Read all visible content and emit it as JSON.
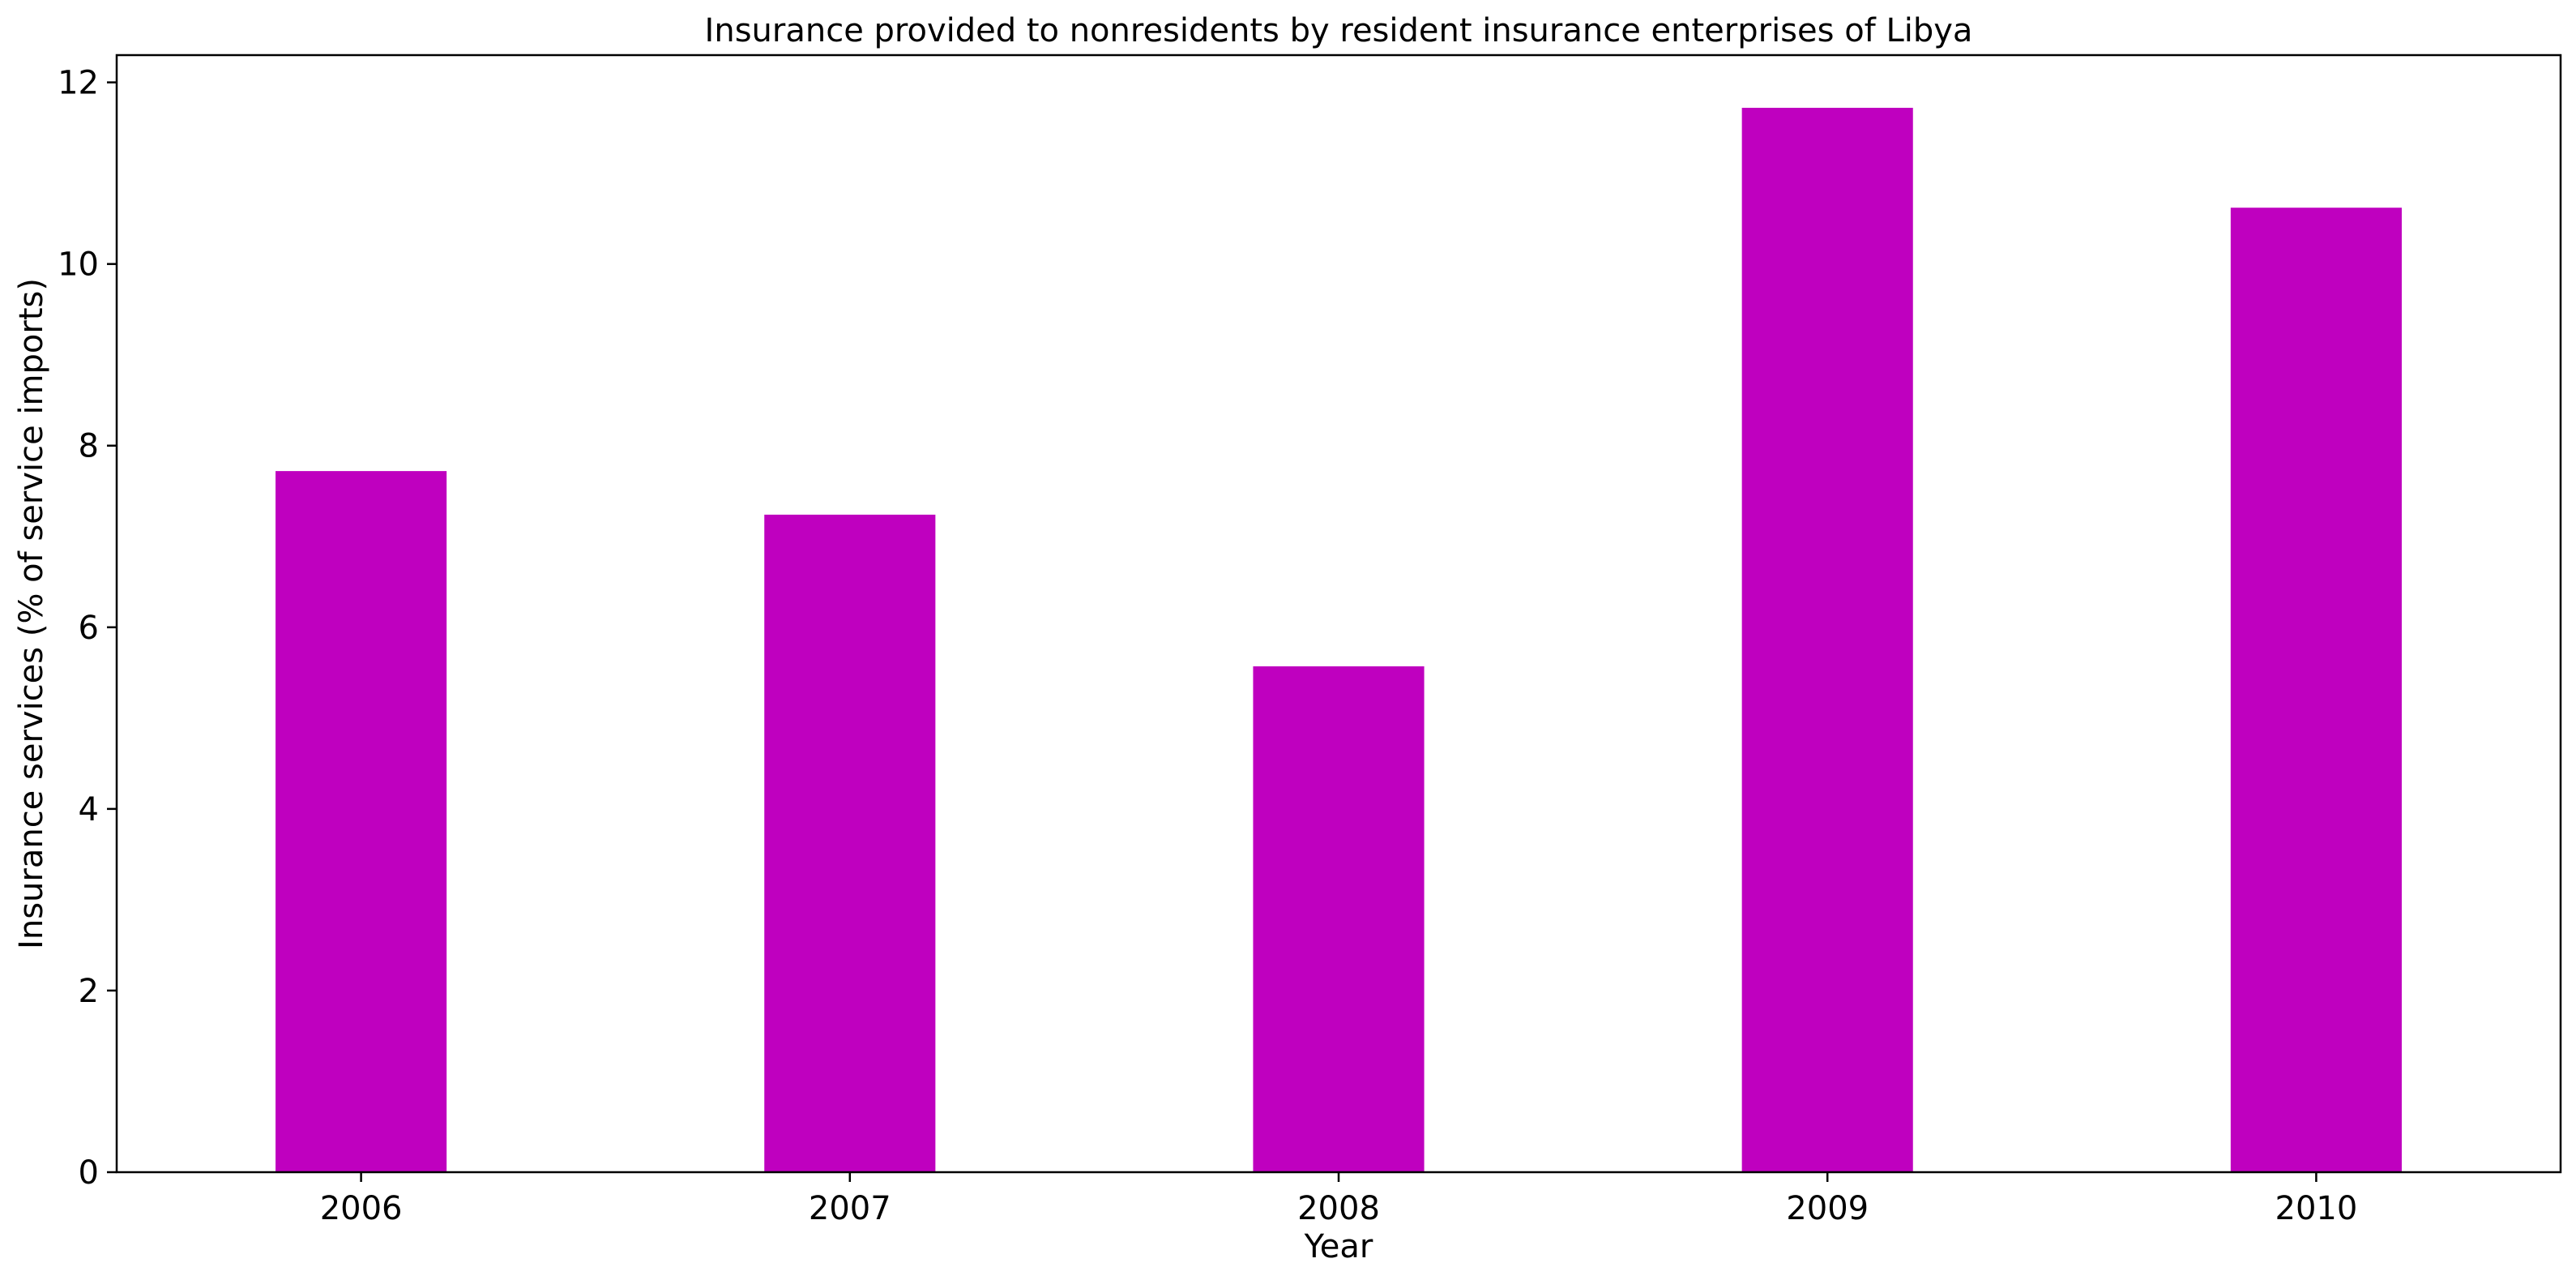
{
  "chart_data": {
    "type": "bar",
    "title": "Insurance provided to nonresidents by resident insurance enterprises of Libya",
    "xlabel": "Year",
    "ylabel": "Insurance services (% of service imports)",
    "categories": [
      "2006",
      "2007",
      "2008",
      "2009",
      "2010"
    ],
    "values": [
      7.72,
      7.24,
      5.57,
      11.72,
      10.62
    ],
    "ylim": [
      0,
      12.3
    ],
    "yticks": [
      0,
      2,
      4,
      6,
      8,
      10,
      12
    ],
    "bar_color": "#bf00bf",
    "grid": false,
    "legend": false
  }
}
